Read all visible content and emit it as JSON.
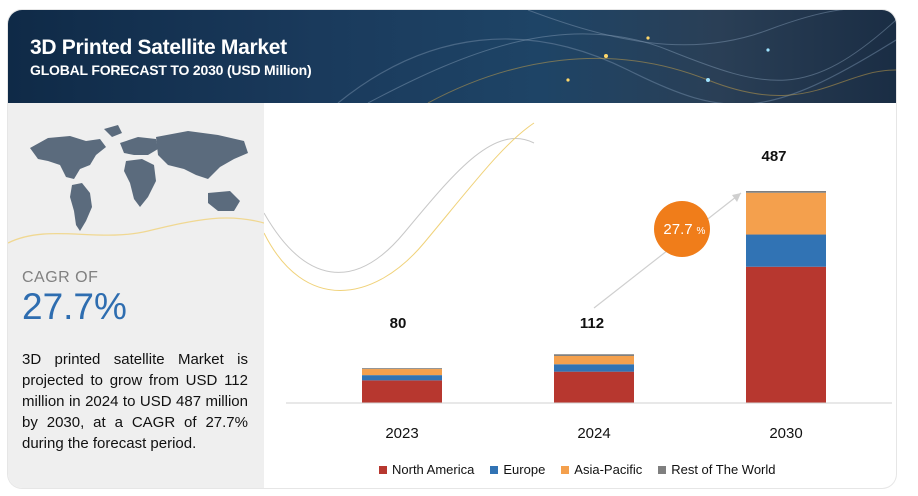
{
  "header": {
    "title": "3D Printed Satellite Market",
    "subtitle": "GLOBAL FORECAST TO 2030 (USD Million)"
  },
  "left": {
    "cagr_label": "CAGR OF",
    "cagr_value": "27.7%",
    "description": "3D printed satellite Market is projected to grow from USD 112 million in 2024 to USD 487 million by 2030, at a CAGR of 27.7% during the forecast period."
  },
  "badge": {
    "value": "27.7",
    "unit": "%"
  },
  "colors": {
    "north_america": "#b7372f",
    "europe": "#3173b4",
    "asia_pacific": "#f4a04d",
    "rest_of_world": "#7f7f7f",
    "badge": "#f07d1a",
    "accent": "#2e6db0"
  },
  "chart_data": {
    "type": "bar",
    "stacked": true,
    "categories": [
      "2023",
      "2024",
      "2030"
    ],
    "totals": [
      "80",
      "112",
      "487"
    ],
    "series": [
      {
        "name": "North America",
        "values": [
          52,
          72,
          313
        ]
      },
      {
        "name": "Europe",
        "values": [
          12,
          17,
          74
        ]
      },
      {
        "name": "Asia-Pacific",
        "values": [
          14,
          19,
          96
        ]
      },
      {
        "name": "Rest of The World",
        "values": [
          2,
          4,
          4
        ]
      }
    ],
    "ylim": [
      0,
      487
    ],
    "grid": false,
    "legend": "bottom"
  }
}
